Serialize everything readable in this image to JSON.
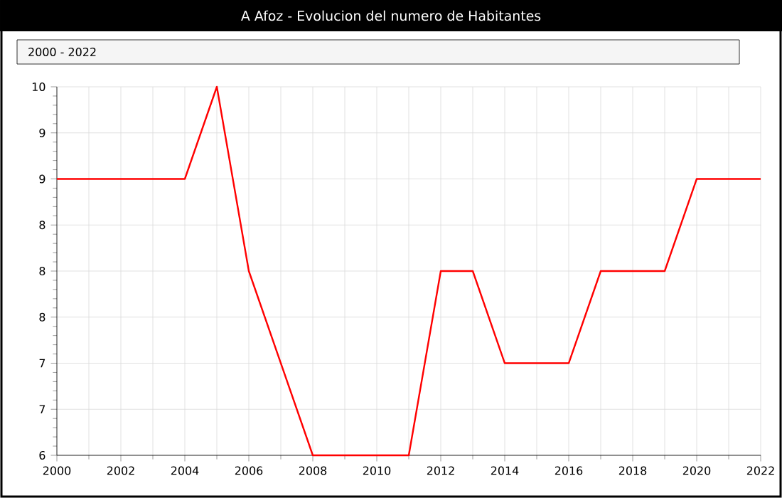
{
  "chart_data": {
    "type": "line",
    "title": "A Afoz - Evolucion del numero de Habitantes",
    "annotations": [
      "2000 - 2022"
    ],
    "x": [
      2000,
      2001,
      2002,
      2003,
      2004,
      2005,
      2006,
      2007,
      2008,
      2009,
      2010,
      2011,
      2012,
      2013,
      2014,
      2015,
      2016,
      2017,
      2018,
      2019,
      2020,
      2021,
      2022
    ],
    "series": [
      {
        "color": "#ff0000",
        "values": [
          9,
          9,
          9,
          9,
          9,
          10,
          8,
          7,
          6,
          6,
          6,
          6,
          8,
          8,
          7,
          7,
          7,
          8,
          8,
          8,
          9,
          9,
          9
        ]
      }
    ],
    "xlim": [
      2000,
      2022
    ],
    "xticks": [
      2000,
      2002,
      2004,
      2006,
      2008,
      2010,
      2012,
      2014,
      2016,
      2018,
      2020,
      2022
    ],
    "ylim": [
      6,
      10
    ],
    "yticks": [
      6,
      {
        "value": 6.5,
        "label": "7"
      },
      7,
      {
        "value": 7.5,
        "label": "8"
      },
      8,
      {
        "value": 8.5,
        "label": "8"
      },
      9,
      {
        "value": 9.5,
        "label": "9"
      },
      10
    ],
    "grid": true,
    "marker": "none",
    "line_style": "solid"
  }
}
